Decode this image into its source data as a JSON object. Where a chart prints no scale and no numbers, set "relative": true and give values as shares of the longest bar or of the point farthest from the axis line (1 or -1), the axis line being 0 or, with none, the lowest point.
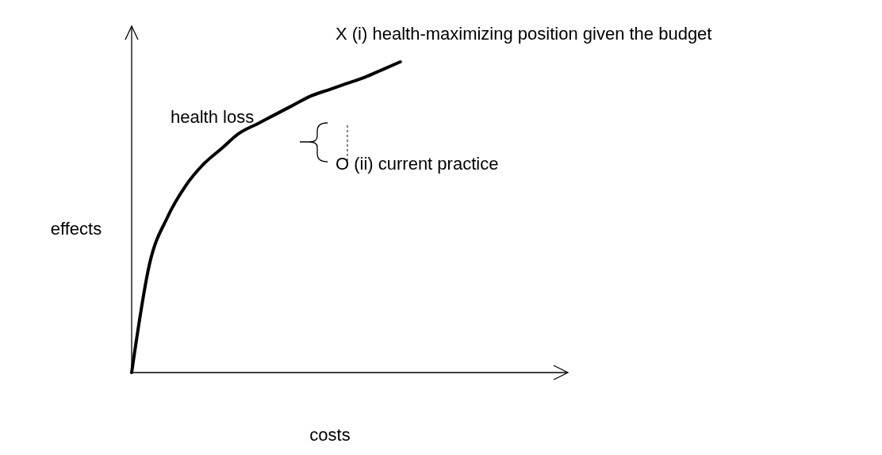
{
  "chart_data": {
    "type": "line",
    "relative": true,
    "xlabel": "costs",
    "ylabel": "effects",
    "color": "#000000",
    "categories": [
      null,
      null,
      null,
      null,
      null,
      null,
      null,
      null,
      null,
      null,
      null,
      null,
      null,
      null,
      null,
      null,
      null,
      null,
      null,
      null,
      null,
      null,
      null,
      null,
      null
    ],
    "values": [
      0,
      0.35,
      0.5,
      0.6,
      0.67,
      0.72,
      0.77,
      0.8,
      0.83,
      0.86,
      0.89,
      0.91,
      0.93,
      0.95,
      0.975,
      1,
      null,
      null,
      null,
      null,
      null,
      null,
      null,
      null,
      null
    ],
    "annotations": [
      "X (i) health-maximizing position given the budget",
      "O (ii) current practice",
      "health loss"
    ]
  }
}
